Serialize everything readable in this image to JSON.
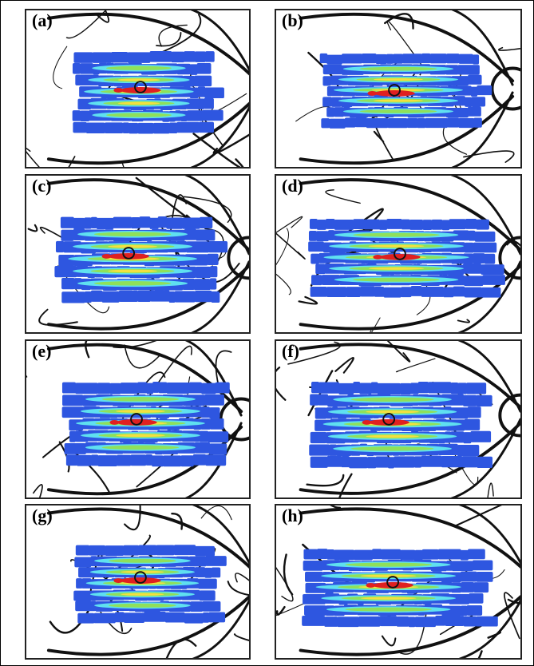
{
  "panels": [
    {
      "label": "(a)"
    },
    {
      "label": "(b)"
    },
    {
      "label": "(c)"
    },
    {
      "label": "(d)"
    },
    {
      "label": "(e)"
    },
    {
      "label": "(f)"
    },
    {
      "label": "(g)"
    },
    {
      "label": "(h)"
    }
  ],
  "colors": {
    "vessel": "#111111",
    "map_blue": "#2e56e0",
    "map_cyan": "#5fe0f0",
    "map_green": "#8fe05a",
    "map_yellow": "#f2e040",
    "map_red": "#e02020",
    "fovea_outline": "#111111"
  }
}
